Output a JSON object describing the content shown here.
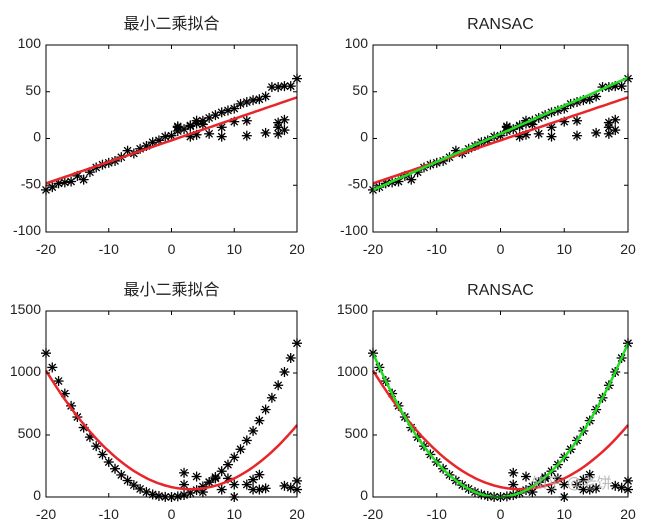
{
  "watermark": "知乎 @老饼",
  "colors": {
    "points": "#000000",
    "least_squares": "#e8262a",
    "ransac": "#22dd22",
    "axes": "#000000"
  },
  "chart_data": [
    {
      "type": "scatter",
      "title": "最小二乘拟合",
      "xlim": [
        -20,
        20
      ],
      "ylim": [
        -100,
        100
      ],
      "xticks": [
        -20,
        -10,
        0,
        10,
        20
      ],
      "yticks": [
        -100,
        -50,
        0,
        50,
        100
      ],
      "grid": false,
      "marker": "asterisk",
      "points_ref": "linear",
      "fits": [
        {
          "kind": "least_squares",
          "coeffs": [
            0,
            2.3,
            -2
          ],
          "color": "#e8262a"
        }
      ]
    },
    {
      "type": "scatter",
      "title": "RANSAC",
      "xlim": [
        -20,
        20
      ],
      "ylim": [
        -100,
        100
      ],
      "xticks": [
        -20,
        -10,
        0,
        10,
        20
      ],
      "yticks": [
        -100,
        -50,
        0,
        50,
        100
      ],
      "grid": false,
      "marker": "asterisk",
      "points_ref": "linear",
      "fits": [
        {
          "kind": "least_squares",
          "coeffs": [
            0,
            2.3,
            -2
          ],
          "color": "#e8262a"
        },
        {
          "kind": "ransac",
          "coeffs": [
            0,
            3,
            5
          ],
          "color": "#22dd22"
        }
      ]
    },
    {
      "type": "scatter",
      "title": "最小二乘拟合",
      "xlim": [
        -20,
        20
      ],
      "ylim": [
        0,
        1500
      ],
      "xticks": [
        -20,
        -10,
        0,
        10,
        20
      ],
      "yticks": [
        0,
        500,
        1000,
        1500
      ],
      "grid": false,
      "marker": "asterisk",
      "points_ref": "quadratic",
      "fits": [
        {
          "kind": "least_squares",
          "coeffs": [
            1.8,
            -11,
            80
          ],
          "color": "#e8262a"
        }
      ]
    },
    {
      "type": "scatter",
      "title": "RANSAC",
      "xlim": [
        -20,
        20
      ],
      "ylim": [
        0,
        1500
      ],
      "xticks": [
        -20,
        -10,
        0,
        10,
        20
      ],
      "yticks": [
        0,
        500,
        1000,
        1500
      ],
      "grid": false,
      "marker": "asterisk",
      "points_ref": "quadratic",
      "fits": [
        {
          "kind": "least_squares",
          "coeffs": [
            1.8,
            -11,
            80
          ],
          "color": "#e8262a"
        },
        {
          "kind": "ransac",
          "coeffs": [
            3,
            2,
            0
          ],
          "color": "#22dd22"
        }
      ]
    }
  ],
  "datasets": {
    "linear": [
      [
        -20,
        -55
      ],
      [
        -19,
        -52
      ],
      [
        -18,
        -48
      ],
      [
        -17,
        -47
      ],
      [
        -16,
        -46
      ],
      [
        -15,
        -40
      ],
      [
        -14,
        -44
      ],
      [
        -13,
        -36
      ],
      [
        -12,
        -31
      ],
      [
        -11,
        -28
      ],
      [
        -10,
        -26
      ],
      [
        -9,
        -24
      ],
      [
        -8,
        -20
      ],
      [
        -7,
        -13
      ],
      [
        -6,
        -16
      ],
      [
        -5,
        -11
      ],
      [
        -4,
        -8
      ],
      [
        -3,
        -4
      ],
      [
        -2,
        -2
      ],
      [
        -1,
        2
      ],
      [
        0,
        3
      ],
      [
        1,
        8
      ],
      [
        2,
        10
      ],
      [
        3,
        13
      ],
      [
        4,
        16
      ],
      [
        5,
        19
      ],
      [
        6,
        22
      ],
      [
        7,
        25
      ],
      [
        8,
        28
      ],
      [
        9,
        30
      ],
      [
        10,
        32
      ],
      [
        11,
        37
      ],
      [
        12,
        39
      ],
      [
        13,
        41
      ],
      [
        14,
        42
      ],
      [
        15,
        45
      ],
      [
        16,
        55
      ],
      [
        17,
        55
      ],
      [
        18,
        56
      ],
      [
        19,
        56
      ],
      [
        20,
        64
      ],
      [
        1,
        12
      ],
      [
        1,
        13
      ],
      [
        3,
        2
      ],
      [
        3,
        14
      ],
      [
        4,
        4
      ],
      [
        4,
        19
      ],
      [
        5,
        15
      ],
      [
        6,
        5
      ],
      [
        8,
        2
      ],
      [
        8,
        12
      ],
      [
        10,
        18
      ],
      [
        12,
        19
      ],
      [
        12,
        3
      ],
      [
        15,
        6
      ],
      [
        17,
        5
      ],
      [
        17,
        12
      ],
      [
        17,
        17
      ],
      [
        18,
        9
      ],
      [
        18,
        20
      ]
    ],
    "quadratic": [
      [
        -20,
        1160
      ],
      [
        -19,
        1045
      ],
      [
        -18,
        935
      ],
      [
        -17,
        834
      ],
      [
        -16,
        735
      ],
      [
        -15,
        645
      ],
      [
        -14,
        560
      ],
      [
        -13,
        483
      ],
      [
        -12,
        410
      ],
      [
        -11,
        343
      ],
      [
        -10,
        282
      ],
      [
        -9,
        228
      ],
      [
        -8,
        178
      ],
      [
        -7,
        133
      ],
      [
        -6,
        96
      ],
      [
        -5,
        65
      ],
      [
        -4,
        40
      ],
      [
        -3,
        21
      ],
      [
        -2,
        8
      ],
      [
        -1,
        1
      ],
      [
        0,
        0
      ],
      [
        1,
        5
      ],
      [
        2,
        16
      ],
      [
        3,
        33
      ],
      [
        4,
        56
      ],
      [
        5,
        85
      ],
      [
        6,
        120
      ],
      [
        7,
        161
      ],
      [
        8,
        208
      ],
      [
        9,
        261
      ],
      [
        10,
        320
      ],
      [
        11,
        385
      ],
      [
        12,
        456
      ],
      [
        13,
        533
      ],
      [
        14,
        616
      ],
      [
        15,
        705
      ],
      [
        16,
        800
      ],
      [
        17,
        901
      ],
      [
        18,
        1008
      ],
      [
        19,
        1121
      ],
      [
        20,
        1240
      ],
      [
        2,
        195
      ],
      [
        2,
        100
      ],
      [
        4,
        165
      ],
      [
        5,
        40
      ],
      [
        6,
        120
      ],
      [
        7,
        150
      ],
      [
        8,
        60
      ],
      [
        9,
        150
      ],
      [
        10,
        0
      ],
      [
        10,
        100
      ],
      [
        12,
        100
      ],
      [
        13,
        140
      ],
      [
        13,
        60
      ],
      [
        14,
        180
      ],
      [
        14,
        60
      ],
      [
        15,
        70
      ],
      [
        18,
        90
      ],
      [
        19,
        75
      ],
      [
        20,
        130
      ],
      [
        20,
        60
      ]
    ]
  }
}
